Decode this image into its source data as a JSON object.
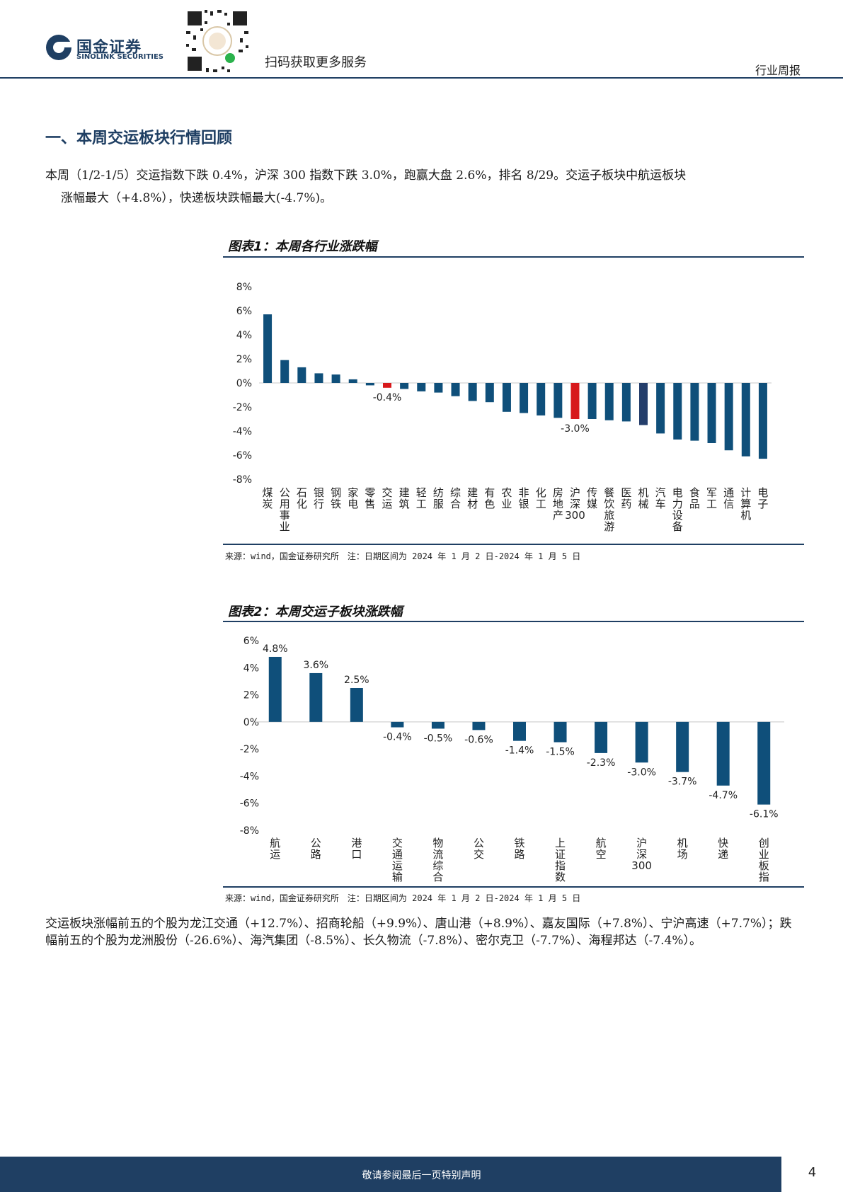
{
  "header": {
    "brand_cn": "国金证券",
    "brand_en": "SINOLINK SECURITIES",
    "qr_caption": "扫码获取更多服务",
    "report_type": "行业周报"
  },
  "section_title": "一、本周交运板块行情回顾",
  "intro": {
    "line1": "本周（1/2-1/5）交运指数下跌 0.4%，沪深 300 指数下跌 3.0%，跑赢大盘 2.6%，排名 8/29。交运子板块中航运板块",
    "line2": "涨幅最大（+4.8%），快递板块跌幅最大(-4.7%)。"
  },
  "figure1": {
    "title": "图表1：本周各行业涨跌幅",
    "note": "来源：wind，国金证券研究所　注：日期区间为 2024 年 1 月 2 日-2024 年 1 月 5 日"
  },
  "figure2": {
    "title": "图表2：本周交运子板块涨跌幅",
    "note": "来源：wind，国金证券研究所　注：日期区间为 2024 年 1 月 2 日-2024 年 1 月 5 日"
  },
  "chart_data": [
    {
      "type": "bar",
      "categories": [
        "煤炭",
        "公用事业",
        "石化",
        "银行",
        "钢铁",
        "家电",
        "零售",
        "交运",
        "建筑",
        "轻工",
        "纺服",
        "综合",
        "建材",
        "有色",
        "农业",
        "非银",
        "化工",
        "房地产",
        "沪深300",
        "传媒",
        "餐饮旅游",
        "医药",
        "机械",
        "汽车",
        "电力设备",
        "食品",
        "军工",
        "通信",
        "计算机",
        "电子"
      ],
      "values": [
        5.7,
        1.9,
        1.3,
        0.8,
        0.7,
        0.3,
        -0.2,
        -0.4,
        -0.5,
        -0.7,
        -0.8,
        -1.1,
        -1.5,
        -1.6,
        -2.4,
        -2.5,
        -2.7,
        -2.9,
        -3.0,
        -3.0,
        -3.1,
        -3.2,
        -3.5,
        -4.2,
        -4.7,
        -4.8,
        -5.0,
        -5.6,
        -6.1,
        -6.3
      ],
      "highlight": {
        "交运": "#d7191c",
        "沪深300": "#d7191c",
        "机械": "#243e6b"
      },
      "bar_color": "#0f4f7a",
      "data_labels": {
        "交运": "-0.4%",
        "沪深300": "-3.0%"
      },
      "ylim": [
        -8,
        8
      ],
      "yticks": [
        "8%",
        "6%",
        "4%",
        "2%",
        "0%",
        "-2%",
        "-4%",
        "-6%",
        "-8%"
      ],
      "yticks_values": [
        8,
        6,
        4,
        2,
        0,
        -2,
        -4,
        -6,
        -8
      ],
      "grid": false
    },
    {
      "type": "bar",
      "categories": [
        "航运",
        "公路",
        "港口",
        "交通运输",
        "物流综合",
        "公交",
        "铁路",
        "上证指数",
        "航空",
        "沪深300",
        "机场",
        "快递",
        "创业板指"
      ],
      "values": [
        4.8,
        3.6,
        2.5,
        -0.4,
        -0.5,
        -0.6,
        -1.4,
        -1.5,
        -2.3,
        -3.0,
        -3.7,
        -4.7,
        -6.1
      ],
      "labels": [
        "4.8%",
        "3.6%",
        "2.5%",
        "-0.4%",
        "-0.5%",
        "-0.6%",
        "-1.4%",
        "-1.5%",
        "-2.3%",
        "-3.0%",
        "-3.7%",
        "-4.7%",
        "-6.1%"
      ],
      "bar_color": "#0f4f7a",
      "ylim": [
        -8,
        6
      ],
      "yticks": [
        "6%",
        "4%",
        "2%",
        "0%",
        "-2%",
        "-4%",
        "-6%",
        "-8%"
      ],
      "yticks_values": [
        6,
        4,
        2,
        0,
        -2,
        -4,
        -6,
        -8
      ],
      "grid": false
    }
  ],
  "bottom_paragraph": "交运板块涨幅前五的个股为龙江交通（+12.7%）、招商轮船（+9.9%）、唐山港（+8.9%）、嘉友国际（+7.8%）、宁沪高速（+7.7%）；跌幅前五的个股为龙洲股份（-26.6%）、海汽集团（-8.5%）、长久物流（-7.8%）、密尔克卫（-7.7%）、海程邦达（-7.4%）。",
  "footer": {
    "disclaimer": "敬请参阅最后一页特别声明",
    "page_number": "4"
  }
}
